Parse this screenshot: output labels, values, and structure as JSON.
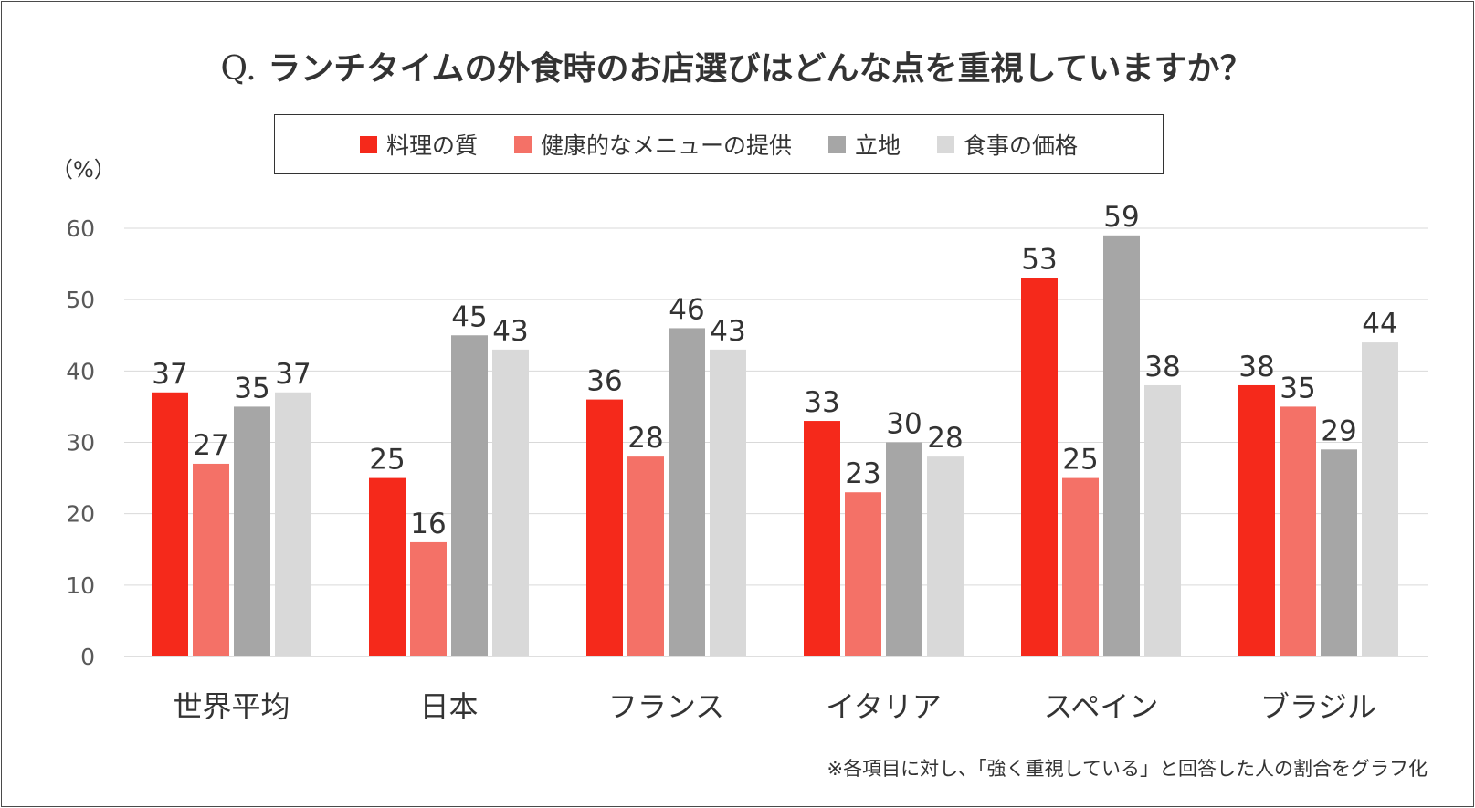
{
  "colors": {
    "series": [
      "#f5291b",
      "#f47167",
      "#a6a6a6",
      "#d9d9d9"
    ],
    "grid": "#d9d9d9",
    "text": "#333333",
    "tick": "#595959"
  },
  "chart_data": {
    "type": "bar",
    "title_prefix": "Q.",
    "title": "ランチタイムの外食時のお店選びはどんな点を重視していますか？",
    "ylabel": "（%）",
    "xlabel": "",
    "ylim": [
      0,
      60
    ],
    "yticks": [
      0,
      10,
      20,
      30,
      40,
      50,
      60
    ],
    "grid": true,
    "legend_position": "top",
    "categories": [
      "世界平均",
      "日本",
      "フランス",
      "イタリア",
      "スペイン",
      "ブラジル"
    ],
    "series": [
      {
        "name": "料理の質",
        "values": [
          37,
          25,
          36,
          33,
          53,
          38
        ]
      },
      {
        "name": "健康的なメニューの提供",
        "values": [
          27,
          16,
          28,
          23,
          25,
          35
        ]
      },
      {
        "name": "立地",
        "values": [
          35,
          45,
          46,
          30,
          59,
          29
        ]
      },
      {
        "name": "食事の価格",
        "values": [
          37,
          43,
          43,
          28,
          38,
          44
        ]
      }
    ],
    "footnote": "※各項目に対し、「強く重視している」と回答した人の割合をグラフ化"
  }
}
